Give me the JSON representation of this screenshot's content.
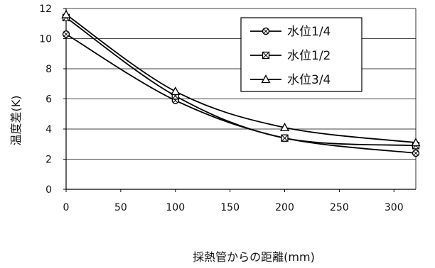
{
  "chart_data": {
    "type": "line",
    "xlabel": "採熱管からの距離(mm)",
    "ylabel": "温度差(K)",
    "xlim": [
      0,
      320
    ],
    "ylim": [
      0,
      12
    ],
    "x_ticks": [
      0,
      50,
      100,
      150,
      200,
      250,
      300
    ],
    "y_ticks": [
      0,
      2,
      4,
      6,
      8,
      10,
      12
    ],
    "grid": "horizontal",
    "legend_position": "top-right",
    "x": [
      0,
      100,
      200,
      320
    ],
    "series": [
      {
        "name": "水位1/4",
        "marker": "circle",
        "values": [
          10.3,
          5.9,
          3.4,
          2.4
        ]
      },
      {
        "name": "水位1/2",
        "marker": "square-x",
        "values": [
          11.4,
          6.2,
          3.4,
          2.9
        ]
      },
      {
        "name": "水位3/4",
        "marker": "triangle",
        "values": [
          11.6,
          6.5,
          4.1,
          3.1
        ]
      }
    ]
  }
}
